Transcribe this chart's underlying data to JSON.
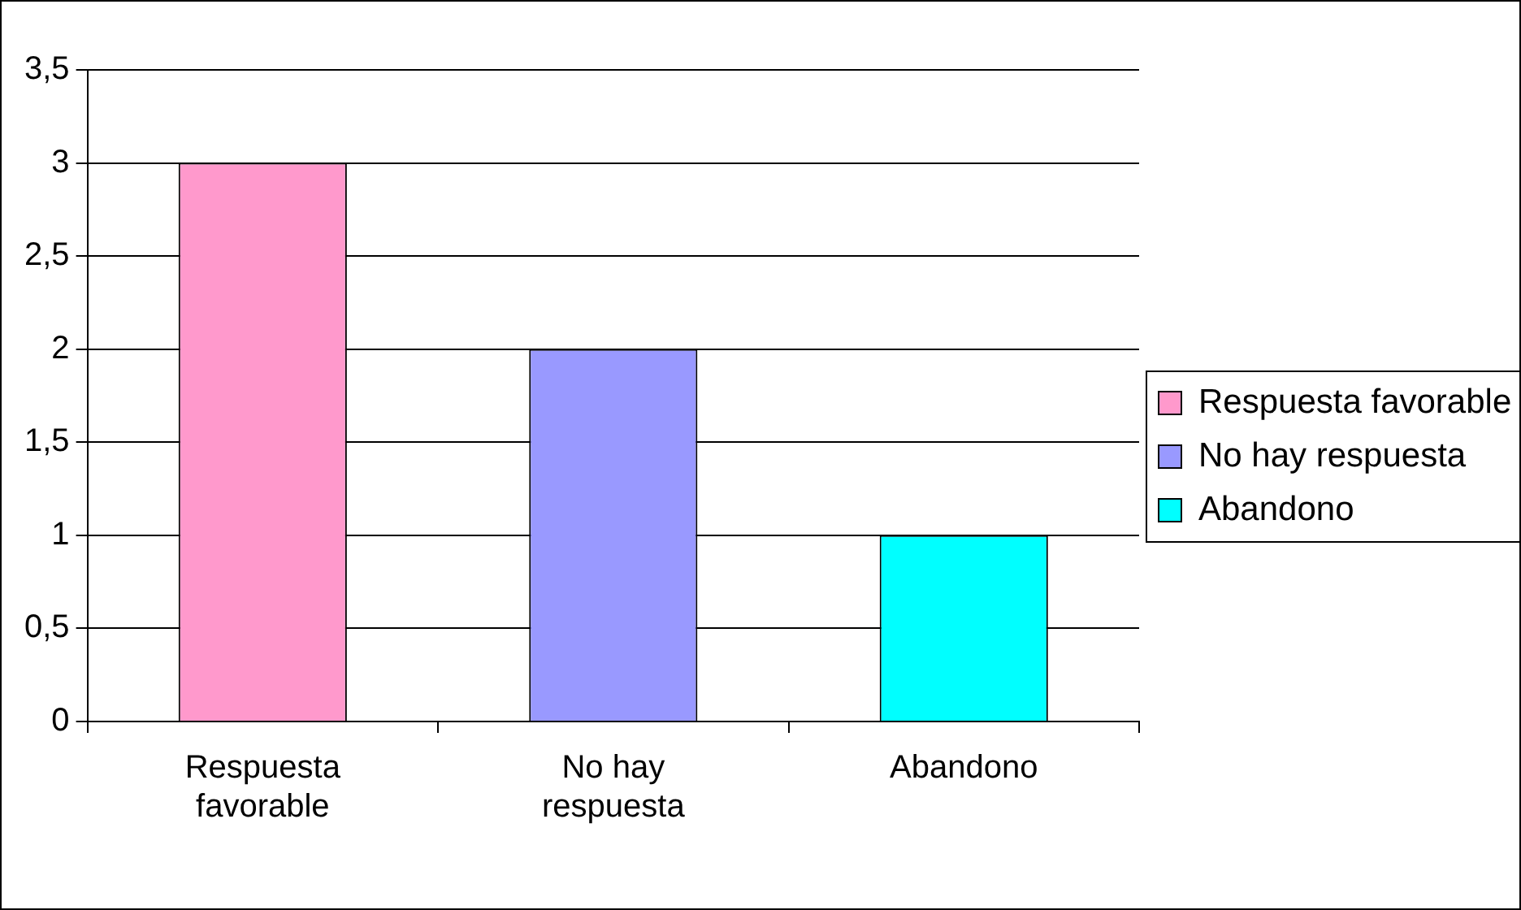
{
  "chart_data": {
    "type": "bar",
    "categories": [
      "Respuesta favorable",
      "No hay respuesta",
      "Abandono"
    ],
    "series": [
      {
        "name": "Respuesta favorable",
        "color": "#ff99cc",
        "values": [
          3,
          null,
          null
        ]
      },
      {
        "name": "No hay respuesta",
        "color": "#9999ff",
        "values": [
          null,
          2,
          null
        ]
      },
      {
        "name": "Abandono",
        "color": "#00ffff",
        "values": [
          null,
          null,
          1
        ]
      }
    ],
    "ylim": [
      0,
      3.5
    ],
    "yticks": [
      0,
      {
        "value": 0.5,
        "label": "0,5"
      },
      1,
      {
        "value": 1.5,
        "label": "1,5"
      },
      2,
      {
        "value": 2.5,
        "label": "2,5"
      },
      3,
      {
        "value": 3.5,
        "label": "3,5"
      }
    ],
    "grid": "y",
    "legend": "right"
  }
}
